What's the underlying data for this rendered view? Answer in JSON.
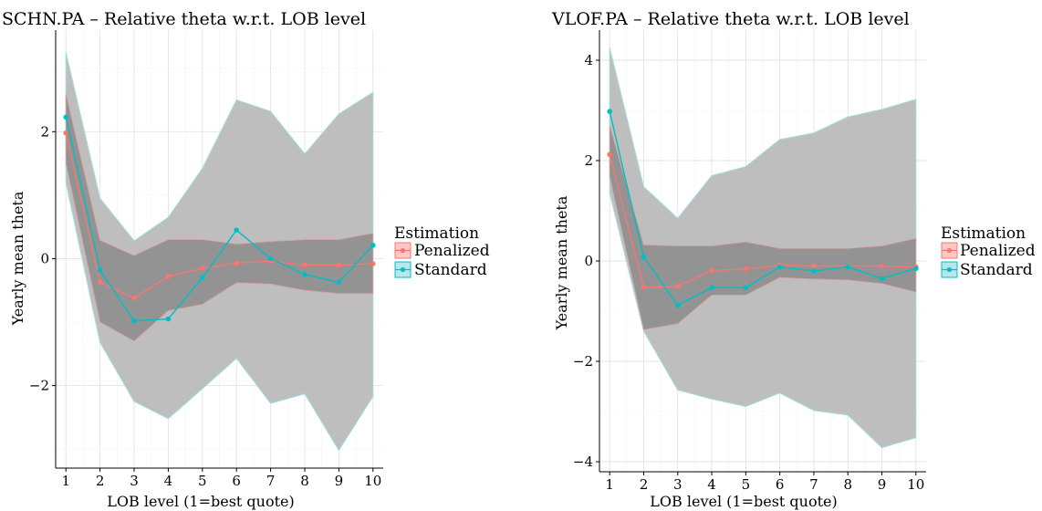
{
  "chart_data": [
    {
      "type": "line",
      "title": "SCHN.PA – Relative theta w.r.t. LOB level",
      "xlabel": "LOB level (1=best quote)",
      "ylabel": "Yearly mean theta",
      "x": [
        1,
        2,
        3,
        4,
        5,
        6,
        7,
        8,
        9,
        10
      ],
      "xlim": [
        0.7,
        10.3
      ],
      "ylim": [
        -3.3,
        3.6
      ],
      "yticks": [
        -2,
        0,
        2
      ],
      "grid": true,
      "series": [
        {
          "name": "Penalized",
          "color": "#F8766D",
          "values": [
            1.98,
            -0.37,
            -0.62,
            -0.28,
            -0.15,
            -0.07,
            -0.04,
            -0.1,
            -0.1,
            -0.08
          ],
          "ci_inner": {
            "lower": [
              1.5,
              -1.0,
              -1.3,
              -0.82,
              -0.72,
              -0.38,
              -0.4,
              -0.5,
              -0.55,
              -0.55
            ],
            "upper": [
              2.6,
              0.29,
              0.05,
              0.3,
              0.3,
              0.23,
              0.27,
              0.3,
              0.3,
              0.4
            ]
          }
        },
        {
          "name": "Standard",
          "color": "#00BFC4",
          "values": [
            2.23,
            -0.18,
            -0.98,
            -0.95,
            -0.3,
            0.45,
            0.0,
            -0.25,
            -0.37,
            0.21
          ],
          "ci_outer": {
            "lower": [
              1.2,
              -1.32,
              -2.25,
              -2.52,
              -2.05,
              -1.57,
              -2.28,
              -2.13,
              -3.02,
              -2.17
            ],
            "upper": [
              3.25,
              0.95,
              0.28,
              0.65,
              1.42,
              2.5,
              2.32,
              1.65,
              2.28,
              2.62
            ]
          }
        }
      ]
    },
    {
      "type": "line",
      "title": "VLOF.PA – Relative theta w.r.t. LOB level",
      "xlabel": "LOB level (1=best quote)",
      "ylabel": "Yearly mean theta",
      "x": [
        1,
        2,
        3,
        4,
        5,
        6,
        7,
        8,
        9,
        10
      ],
      "xlim": [
        0.7,
        10.3
      ],
      "ylim": [
        -4.2,
        4.6
      ],
      "yticks": [
        -4,
        -2,
        0,
        2,
        4
      ],
      "grid": true,
      "series": [
        {
          "name": "Penalized",
          "color": "#F8766D",
          "values": [
            2.12,
            -0.53,
            -0.5,
            -0.19,
            -0.16,
            -0.08,
            -0.1,
            -0.1,
            -0.1,
            -0.12
          ],
          "ci_inner": {
            "lower": [
              1.68,
              -1.37,
              -1.25,
              -0.68,
              -0.68,
              -0.33,
              -0.36,
              -0.38,
              -0.45,
              -0.62
            ],
            "upper": [
              2.7,
              0.32,
              0.3,
              0.3,
              0.38,
              0.25,
              0.25,
              0.25,
              0.3,
              0.45
            ]
          }
        },
        {
          "name": "Standard",
          "color": "#00BFC4",
          "values": [
            2.98,
            0.08,
            -0.88,
            -0.53,
            -0.53,
            -0.12,
            -0.2,
            -0.12,
            -0.35,
            -0.15
          ],
          "ci_outer": {
            "lower": [
              1.35,
              -1.4,
              -2.57,
              -2.75,
              -2.9,
              -2.63,
              -2.98,
              -3.07,
              -3.72,
              -3.52
            ],
            "upper": [
              4.25,
              1.48,
              0.85,
              1.7,
              1.88,
              2.42,
              2.55,
              2.87,
              3.02,
              3.22
            ]
          }
        }
      ]
    }
  ],
  "legend": {
    "title": "Estimation",
    "entries": [
      {
        "label": "Penalized",
        "color": "#F8766D"
      },
      {
        "label": "Standard",
        "color": "#00BFC4"
      }
    ]
  },
  "band_colors": {
    "outer_fill": "#BEBEBE",
    "inner_fill": "#8C8C8C"
  }
}
